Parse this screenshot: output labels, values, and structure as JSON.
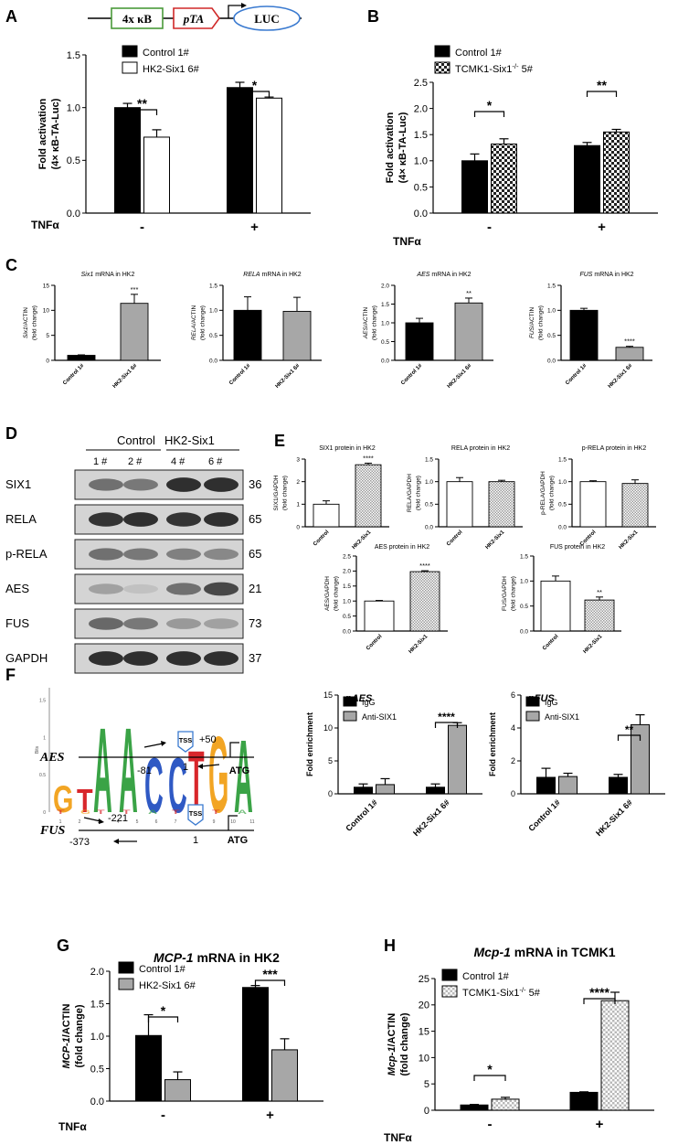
{
  "panel_letters": [
    "A",
    "B",
    "C",
    "D",
    "E",
    "F",
    "G",
    "H"
  ],
  "construct": {
    "box1": "4x κB",
    "box2": "pTA",
    "box3": "LUC"
  },
  "tnf": {
    "label": "TNFα",
    "minus": "-",
    "plus": "+"
  },
  "chart_data": [
    {
      "id": "A",
      "type": "bar",
      "ylabel": "Fold activation",
      "ylabel2": "(4× κB-TA-Luc)",
      "yticks": [
        "0.0",
        "0.5",
        "1.0",
        "1.5"
      ],
      "ylim": [
        0,
        1.5
      ],
      "categories": [
        "-",
        "+"
      ],
      "series": [
        {
          "name": "Control 1#",
          "values": [
            1.0,
            1.19
          ],
          "errors": [
            0.04,
            0.05
          ]
        },
        {
          "name": "HK2-Six1 6#",
          "values": [
            0.72,
            1.09
          ],
          "errors": [
            0.07,
            0.01
          ]
        }
      ],
      "sig": [
        "**",
        "*"
      ]
    },
    {
      "id": "B",
      "type": "bar",
      "ylabel": "Fold activation",
      "ylabel2": "(4× κB-TA-Luc)",
      "yticks": [
        "0.0",
        "0.5",
        "1.0",
        "1.5",
        "2.0",
        "2.5"
      ],
      "ylim": [
        0,
        2.5
      ],
      "categories": [
        "-",
        "+"
      ],
      "series": [
        {
          "name": "Control 1#",
          "values": [
            1.0,
            1.29
          ],
          "errors": [
            0.13,
            0.06
          ]
        },
        {
          "name": "TCMK1-Six1",
          "name_sup": "-/-",
          "name_tail": " 5#",
          "values": [
            1.32,
            1.55
          ],
          "errors": [
            0.1,
            0.05
          ]
        }
      ],
      "sig": [
        "*",
        "**"
      ]
    },
    {
      "id": "C1",
      "type": "bar",
      "title_ital": "Six1",
      "title_rest": " mRNA in HK2",
      "ylabel_ital": "Six1",
      "ylabel_rest": "/ACTIN",
      "ylabel2": "(fold change)",
      "yticks": [
        "0",
        "5",
        "10",
        "15"
      ],
      "ylim": [
        0,
        15
      ],
      "categories": [
        "Control 1#",
        "HK2-Six1 6#"
      ],
      "values": [
        1.0,
        11.4
      ],
      "errors": [
        0.1,
        1.8
      ],
      "sig": "***"
    },
    {
      "id": "C2",
      "type": "bar",
      "title_ital": "RELA",
      "title_rest": " mRNA in HK2",
      "ylabel_ital": "RELA",
      "ylabel_rest": "/ACTIN",
      "ylabel2": "(fold change)",
      "yticks": [
        "0.0",
        "0.5",
        "1.0",
        "1.5"
      ],
      "ylim": [
        0,
        1.5
      ],
      "categories": [
        "Control 1#",
        "HK2-Six1 6#"
      ],
      "values": [
        1.0,
        0.98
      ],
      "errors": [
        0.27,
        0.28
      ],
      "sig": ""
    },
    {
      "id": "C3",
      "type": "bar",
      "title_ital": "AES",
      "title_rest": " mRNA in HK2",
      "ylabel_ital": "AES",
      "ylabel_rest": "/ACTIN",
      "ylabel2": "(fold change)",
      "yticks": [
        "0.0",
        "0.5",
        "1.0",
        "1.5",
        "2.0"
      ],
      "ylim": [
        0,
        2.0
      ],
      "categories": [
        "Control 1#",
        "HK2-Six1 6#"
      ],
      "values": [
        1.0,
        1.53
      ],
      "errors": [
        0.12,
        0.13
      ],
      "sig": "**"
    },
    {
      "id": "C4",
      "type": "bar",
      "title_ital": "FUS",
      "title_rest": " mRNA in HK2",
      "ylabel_ital": "FUS",
      "ylabel_rest": "/ACTIN",
      "ylabel2": "(fold change)",
      "yticks": [
        "0.0",
        "0.5",
        "1.0",
        "1.5"
      ],
      "ylim": [
        0,
        1.5
      ],
      "categories": [
        "Control 1#",
        "HK2-Six1 6#"
      ],
      "values": [
        1.0,
        0.26
      ],
      "errors": [
        0.04,
        0.02
      ],
      "sig": "****"
    },
    {
      "id": "E1",
      "type": "bar",
      "title": "SIX1 protein in HK2",
      "ylabel": "SIX1/GAPDH",
      "ylabel2": "(fold change)",
      "yticks": [
        "0",
        "1",
        "2",
        "3"
      ],
      "ylim": [
        0,
        3
      ],
      "categories": [
        "Control",
        "HK2-Six1"
      ],
      "values": [
        1.0,
        2.75
      ],
      "errors": [
        0.15,
        0.07
      ],
      "sig": "****"
    },
    {
      "id": "E2",
      "type": "bar",
      "title": "RELA protein in HK2",
      "ylabel": "RELA/GAPDH",
      "ylabel2": "(fold change)",
      "yticks": [
        "0.0",
        "0.5",
        "1.0",
        "1.5"
      ],
      "ylim": [
        0,
        1.5
      ],
      "categories": [
        "Control",
        "HK2-Six1"
      ],
      "values": [
        1.0,
        1.0
      ],
      "errors": [
        0.09,
        0.03
      ],
      "sig": ""
    },
    {
      "id": "E3",
      "type": "bar",
      "title": "p-RELA protein in HK2",
      "ylabel": "p-RELA/GAPDH",
      "ylabel2": "(fold change)",
      "yticks": [
        "0.0",
        "0.5",
        "1.0",
        "1.5"
      ],
      "ylim": [
        0,
        1.5
      ],
      "categories": [
        "Control",
        "HK2-Six1"
      ],
      "values": [
        1.0,
        0.96
      ],
      "errors": [
        0.02,
        0.08
      ],
      "sig": ""
    },
    {
      "id": "E4",
      "type": "bar",
      "title": "AES protein in HK2",
      "ylabel": "AES/GAPDH",
      "ylabel2": "(fold change)",
      "yticks": [
        "0.0",
        "0.5",
        "1.0",
        "1.5",
        "2.0",
        "2.5"
      ],
      "ylim": [
        0,
        2.5
      ],
      "categories": [
        "Control",
        "HK2-Six1"
      ],
      "values": [
        1.0,
        1.98
      ],
      "errors": [
        0.02,
        0.03
      ],
      "sig": "****"
    },
    {
      "id": "E5",
      "type": "bar",
      "title": "FUS protein in HK2",
      "ylabel": "FUS/GAPDH",
      "ylabel2": "(fold change)",
      "yticks": [
        "0.0",
        "0.5",
        "1.0",
        "1.5"
      ],
      "ylim": [
        0,
        1.5
      ],
      "categories": [
        "Control",
        "HK2-Six1"
      ],
      "values": [
        1.0,
        0.62
      ],
      "errors": [
        0.1,
        0.06
      ],
      "sig": "**"
    },
    {
      "id": "F1",
      "type": "bar",
      "title": "pAES",
      "ylabel": "Fold enrichment",
      "yticks": [
        "0",
        "5",
        "10",
        "15"
      ],
      "ylim": [
        0,
        15
      ],
      "categories": [
        "Control 1#",
        "HK2-Six1 6#"
      ],
      "series": [
        {
          "name": "IgG",
          "values": [
            1.0,
            1.0
          ],
          "errors": [
            0.5,
            0.5
          ]
        },
        {
          "name": "Anti-SIX1",
          "values": [
            1.4,
            10.4
          ],
          "errors": [
            0.9,
            0.4
          ]
        }
      ],
      "sig": [
        "",
        "****"
      ]
    },
    {
      "id": "F2",
      "type": "bar",
      "title": "pFUS",
      "ylabel": "Fold enrichment",
      "yticks": [
        "0",
        "2",
        "4",
        "6"
      ],
      "ylim": [
        0,
        6
      ],
      "categories": [
        "Control 1#",
        "HK2-Six1 6#"
      ],
      "series": [
        {
          "name": "IgG",
          "values": [
            1.0,
            1.0
          ],
          "errors": [
            0.55,
            0.18
          ]
        },
        {
          "name": "Anti-SIX1",
          "values": [
            1.05,
            4.2
          ],
          "errors": [
            0.2,
            0.6
          ]
        }
      ],
      "sig": [
        "",
        "**"
      ]
    },
    {
      "id": "G",
      "type": "bar",
      "title_ital": "MCP-1",
      "title_rest": " mRNA in HK2",
      "ylabel_ital": "MCP-1",
      "ylabel_rest": "/ACTIN",
      "ylabel2": "(fold change)",
      "yticks": [
        "0.0",
        "0.5",
        "1.0",
        "1.5",
        "2.0"
      ],
      "ylim": [
        0,
        2.0
      ],
      "categories": [
        "-",
        "+"
      ],
      "series": [
        {
          "name": "Control 1#",
          "values": [
            1.01,
            1.75
          ],
          "errors": [
            0.32,
            0.03
          ]
        },
        {
          "name": "HK2-Six1 6#",
          "values": [
            0.33,
            0.79
          ],
          "errors": [
            0.12,
            0.17
          ]
        }
      ],
      "sig": [
        "*",
        "***"
      ]
    },
    {
      "id": "H",
      "type": "bar",
      "title_ital": "Mcp-1",
      "title_rest": " mRNA in TCMK1",
      "ylabel_ital": "Mcp-1",
      "ylabel_rest": "/ACTIN",
      "ylabel2": "(fold change)",
      "yticks": [
        "0",
        "5",
        "10",
        "15",
        "20",
        "25"
      ],
      "ylim": [
        0,
        25
      ],
      "categories": [
        "-",
        "+"
      ],
      "series": [
        {
          "name": "Control 1#",
          "values": [
            1.0,
            3.4
          ],
          "errors": [
            0.1,
            0.1
          ]
        },
        {
          "name": "TCMK1-Six1",
          "name_sup": "-/-",
          "name_tail": " 5#",
          "values": [
            2.1,
            20.8
          ],
          "errors": [
            0.35,
            1.6
          ]
        }
      ],
      "sig": [
        "*",
        "****"
      ]
    }
  ],
  "blot": {
    "group1": "Control",
    "group2": "HK2-Six1",
    "lanes": [
      "1 #",
      "2 #",
      "4 #",
      "6 #"
    ],
    "rows": [
      {
        "name": "SIX1",
        "kda": "36",
        "intensity": [
          0.55,
          0.5,
          0.95,
          0.95
        ]
      },
      {
        "name": "RELA",
        "kda": "65",
        "intensity": [
          0.92,
          0.95,
          0.92,
          0.95
        ]
      },
      {
        "name": "p-RELA",
        "kda": "65",
        "intensity": [
          0.55,
          0.5,
          0.45,
          0.4
        ]
      },
      {
        "name": "AES",
        "kda": "21",
        "intensity": [
          0.25,
          0.05,
          0.55,
          0.8
        ]
      },
      {
        "name": "FUS",
        "kda": "73",
        "intensity": [
          0.6,
          0.5,
          0.3,
          0.25
        ]
      },
      {
        "name": "GAPDH",
        "kda": "37",
        "intensity": [
          0.95,
          0.95,
          0.95,
          0.95
        ]
      }
    ]
  },
  "motif": {
    "letters": [
      "G",
      "T",
      "A",
      "A",
      "C",
      "C",
      "T",
      "G",
      "A"
    ],
    "yaxis": "Bits",
    "yticks": [
      "0",
      "0.5",
      "1",
      "1.5"
    ],
    "positions": [
      "1",
      "2",
      "3",
      "4",
      "5",
      "6",
      "7",
      "8",
      "9",
      "10",
      "11"
    ]
  },
  "promoters": {
    "aes": {
      "name": "AES",
      "tss": "TSS",
      "tss_pos": "1",
      "up": "-81",
      "down": "+50",
      "atg": "ATG"
    },
    "fus": {
      "name": "FUS",
      "tss": "TSS",
      "tss_pos": "1",
      "up1": "-221",
      "up2": "-373",
      "atg": "ATG"
    }
  }
}
